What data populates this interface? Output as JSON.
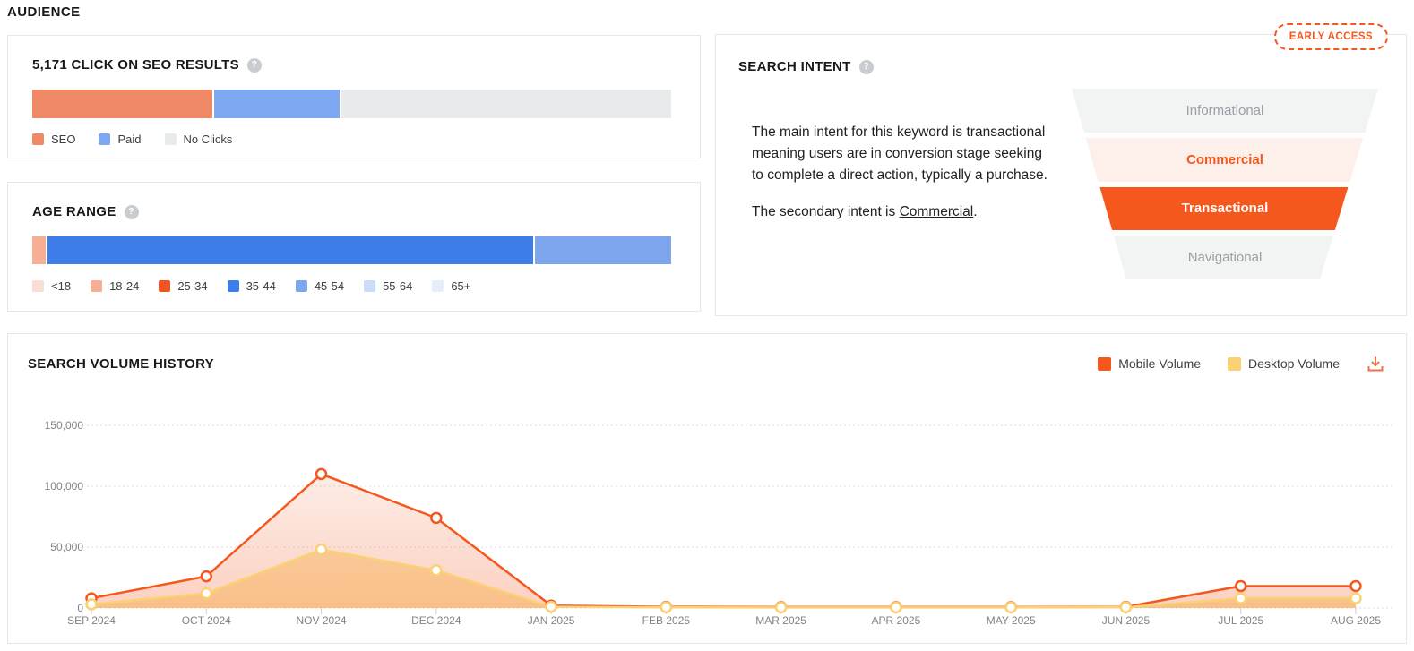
{
  "page": {
    "title": "AUDIENCE"
  },
  "seo_clicks": {
    "title": "5,171 CLICK ON SEO RESULTS",
    "help_glyph": "?",
    "bar": [
      {
        "label": "SEO",
        "color": "#F08A66",
        "pct": 28.3
      },
      {
        "label": "Paid",
        "color": "#7EA9F2",
        "pct": 19.8
      },
      {
        "label": "No Clicks",
        "color": "#E8EBEB",
        "pct": 51.9
      }
    ],
    "legend": [
      {
        "label": "SEO",
        "color": "#F08A66"
      },
      {
        "label": "Paid",
        "color": "#7EA9F2"
      },
      {
        "label": "No Clicks",
        "color": "#E8EBEB"
      }
    ]
  },
  "age_range": {
    "title": "AGE RANGE",
    "help_glyph": "?",
    "bar": [
      {
        "label": "18-24",
        "color": "#F6AE95",
        "pct": 2.1
      },
      {
        "label": "35-44",
        "color": "#3E7EE8",
        "pct": 76.4
      },
      {
        "label": "45-54",
        "color": "#7EA6EE",
        "pct": 21.5
      }
    ],
    "legend": [
      {
        "label": "<18",
        "color": "#FADDD3"
      },
      {
        "label": "18-24",
        "color": "#F6AE95"
      },
      {
        "label": "25-34",
        "color": "#F05323"
      },
      {
        "label": "35-44",
        "color": "#3E7EE8"
      },
      {
        "label": "45-54",
        "color": "#7EA6EE"
      },
      {
        "label": "55-64",
        "color": "#CBDCF8"
      },
      {
        "label": "65+",
        "color": "#E5EFFC"
      }
    ]
  },
  "search_intent": {
    "title": "SEARCH INTENT",
    "help_glyph": "?",
    "badge": "EARLY ACCESS",
    "paragraph1": "The main intent for this keyword is transactional meaning users are in conversion stage seeking to complete a direct action, typically a purchase.",
    "paragraph2_prefix": "The secondary intent is ",
    "paragraph2_link": "Commercial",
    "paragraph2_suffix": ".",
    "funnel": [
      {
        "label": "Informational",
        "bg": "#F2F3F3",
        "color": "#9AA0A6",
        "bold": false
      },
      {
        "label": "Commercial",
        "bg": "#FDEFE9",
        "color": "#F4581C",
        "bold": true
      },
      {
        "label": "Transactional",
        "bg": "#F4581C",
        "color": "#FFFFFF",
        "bold": true
      },
      {
        "label": "Navigational",
        "bg": "#F2F3F3",
        "color": "#9AA0A6",
        "bold": false
      }
    ]
  },
  "chart_data": {
    "type": "line",
    "title": "SEARCH VOLUME HISTORY",
    "categories": [
      "SEP 2024",
      "OCT 2024",
      "NOV 2024",
      "DEC 2024",
      "JAN 2025",
      "FEB 2025",
      "MAR 2025",
      "APR 2025",
      "MAY 2025",
      "JUN 2025",
      "JUL 2025",
      "AUG 2025"
    ],
    "series": [
      {
        "name": "Mobile Volume",
        "color": "#F4581C",
        "fill": "242,90,36",
        "values": [
          8000,
          26000,
          110000,
          74000,
          2000,
          1000,
          800,
          800,
          800,
          1000,
          18000,
          18000
        ]
      },
      {
        "name": "Desktop Volume",
        "color": "#FAD173",
        "fill": "249,178,89",
        "values": [
          3000,
          12000,
          48000,
          31000,
          1000,
          600,
          500,
          500,
          500,
          600,
          8000,
          8000
        ]
      }
    ],
    "ylim": [
      0,
      150000
    ],
    "yticks": [
      0,
      50000,
      100000,
      150000
    ],
    "ytick_labels": [
      "0",
      "50,000",
      "100,000",
      "150,000"
    ],
    "grid": "dotted-horizontal",
    "legend_position": "top-right",
    "download_icon": "download-icon"
  }
}
